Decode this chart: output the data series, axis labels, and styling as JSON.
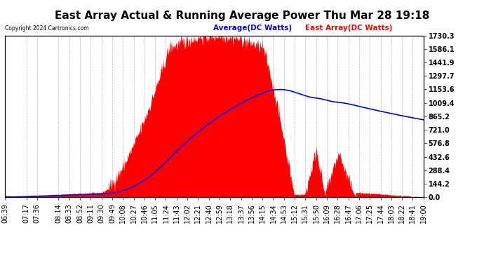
{
  "title": "East Array Actual & Running Average Power Thu Mar 28 19:18",
  "copyright": "Copyright 2024 Cartronics.com",
  "legend_avg": "Average(DC Watts)",
  "legend_east": "East Array(DC Watts)",
  "legend_avg_color": "blue",
  "legend_east_color": "red",
  "ylabel_right_ticks": [
    0.0,
    144.2,
    288.4,
    432.6,
    576.8,
    721.0,
    865.2,
    1009.4,
    1153.6,
    1297.7,
    1441.9,
    1586.1,
    1730.3
  ],
  "ymax": 1730.3,
  "ymin": 0.0,
  "background_color": "#ffffff",
  "plot_background": "#ffffff",
  "grid_color": "#bbbbbb",
  "fill_color": "red",
  "line_color": "blue",
  "title_fontsize": 11,
  "tick_fontsize": 7,
  "x_tick_labels": [
    "06:39",
    "07:17",
    "07:36",
    "08:14",
    "08:33",
    "08:52",
    "09:11",
    "09:30",
    "09:49",
    "10:08",
    "10:27",
    "10:46",
    "11:05",
    "11:24",
    "11:43",
    "12:02",
    "12:21",
    "12:40",
    "12:59",
    "13:18",
    "13:37",
    "13:56",
    "14:15",
    "14:34",
    "14:53",
    "15:12",
    "15:31",
    "15:50",
    "16:09",
    "16:28",
    "16:47",
    "17:06",
    "17:25",
    "17:44",
    "18:03",
    "18:22",
    "18:41",
    "19:00"
  ]
}
